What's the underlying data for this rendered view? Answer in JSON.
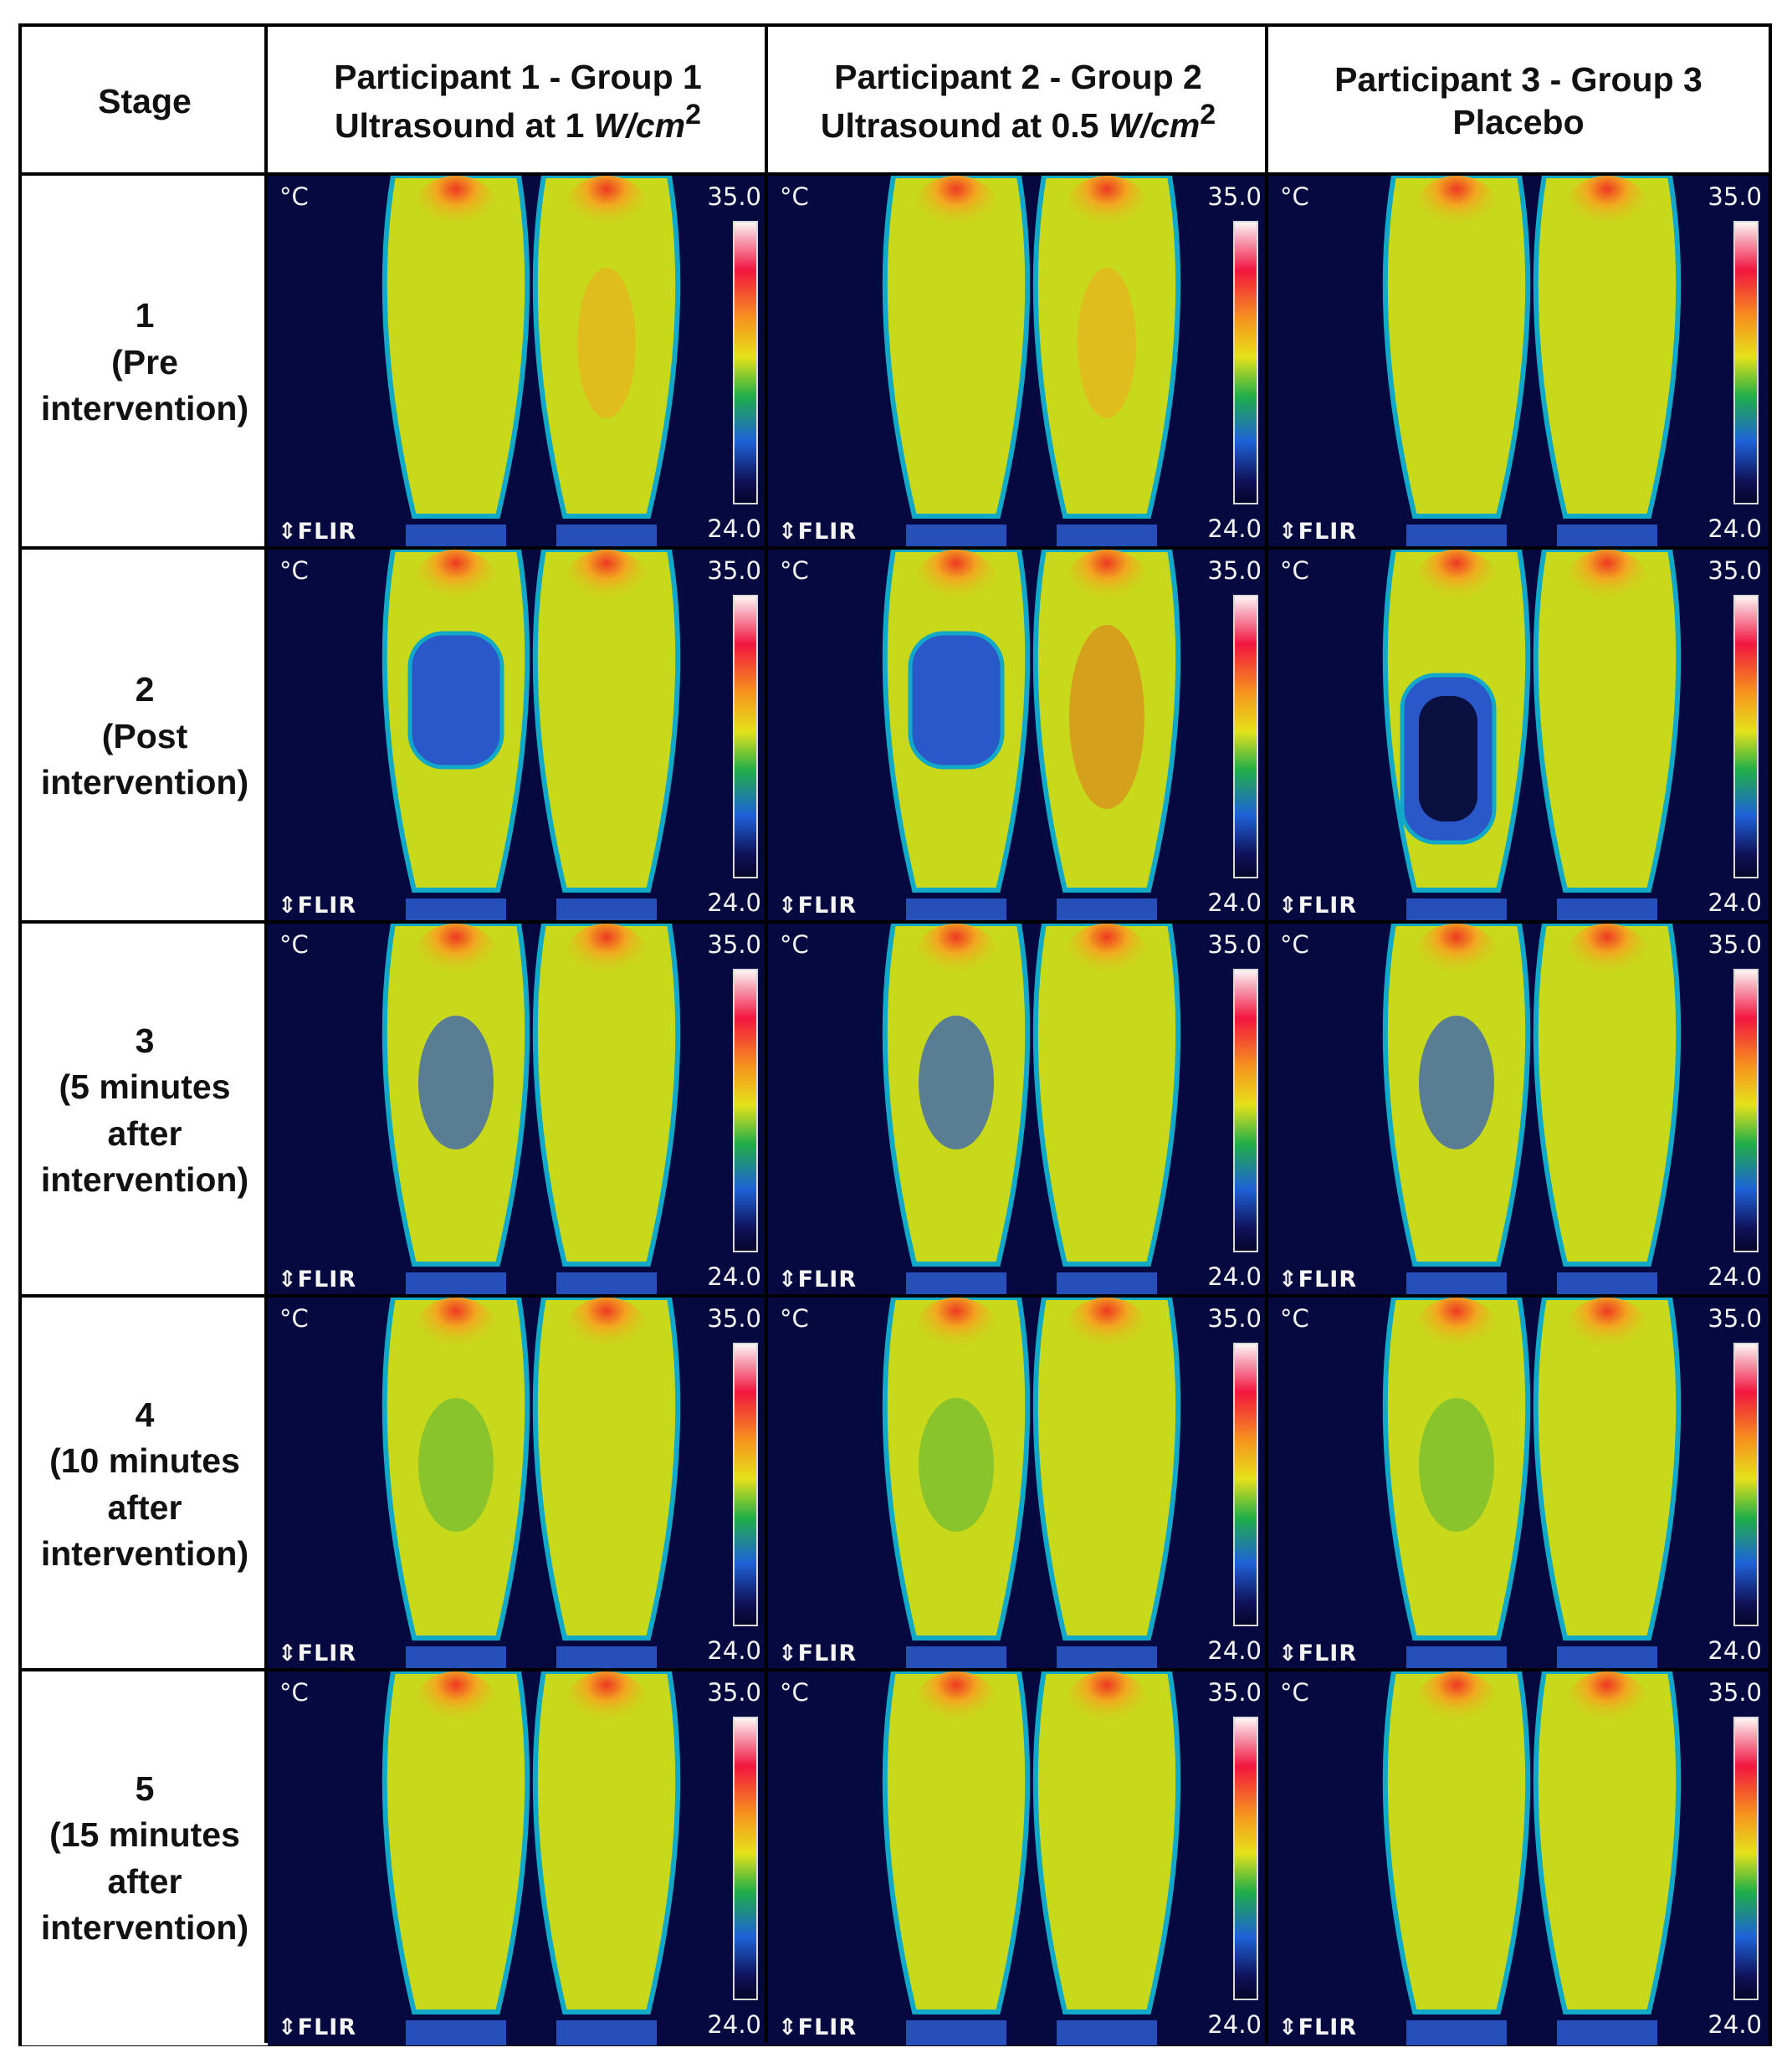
{
  "headers": {
    "stage": "Stage",
    "p1": {
      "line1": "Participant 1 - Group 1",
      "line2_prefix": "Ultrasound at 1 ",
      "unit": "W/cm",
      "exp": "2"
    },
    "p2": {
      "line1": "Participant 2 - Group 2",
      "line2_prefix": "Ultrasound at 0.5 ",
      "unit": "W/cm",
      "exp": "2"
    },
    "p3": {
      "line1": "Participant 3 - Group 3",
      "line2": "Placebo"
    }
  },
  "stages": [
    {
      "number": "1",
      "label": "(Pre\nintervention)"
    },
    {
      "number": "2",
      "label": "(Post\nintervention)"
    },
    {
      "number": "3",
      "label": "(5 minutes\nafter\nintervention)"
    },
    {
      "number": "4",
      "label": "(10 minutes\nafter\nintervention)"
    },
    {
      "number": "5",
      "label": "(15 minutes\nafter\nintervention)"
    }
  ],
  "thermal": {
    "unit": "°C",
    "max": "35.0",
    "min": "24.0",
    "brand": "FLIR",
    "brand_icon": "flir-logo-icon",
    "palette": [
      "#fdf6f6",
      "#f2163f",
      "#f6921e",
      "#e6e21a",
      "#20ae48",
      "#1f62d8",
      "#05052a"
    ]
  }
}
